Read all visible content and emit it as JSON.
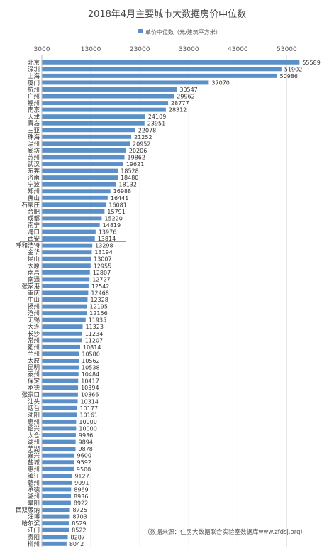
{
  "chart_data": {
    "type": "bar",
    "orientation": "horizontal",
    "title": "2018年4月主要城市大数据房价中位数",
    "legend": "单价中位数（元/建筑平方米）",
    "legend_position": "top",
    "series_color": "#5b8fc7",
    "marker_color": "#d22b2b",
    "xlim": [
      3000,
      58000
    ],
    "xticks": [
      3000,
      13000,
      23000,
      33000,
      43000,
      53000
    ],
    "source": "（数据来源：住房大数据联合实验室数据库www.zfdsj.org）",
    "categories": [
      "北京",
      "深圳",
      "上海",
      "厦门",
      "杭州",
      "广州",
      "福州",
      "南京",
      "天津",
      "青岛",
      "三亚",
      "珠海",
      "温州",
      "廊坊",
      "苏州",
      "武汉",
      "东莞",
      "济南",
      "宁波",
      "郑州",
      "佛山",
      "石家庄",
      "合肥",
      "成都",
      "南宁",
      "海口",
      "西安",
      "呼和浩特",
      "金华",
      "昆山",
      "太原",
      "南昌",
      "南通",
      "张家港",
      "重庆",
      "中山",
      "扬州",
      "沧州",
      "无锡",
      "大连",
      "长沙",
      "常州",
      "衢州",
      "兰州",
      "太原",
      "昆明",
      "泰州",
      "保定",
      "承德",
      "张家口",
      "汕头",
      "烟台",
      "沈阳",
      "惠州",
      "绍兴",
      "太仓",
      "湖州",
      "芜湖",
      "嘉兴",
      "盐城",
      "惠州",
      "镇江",
      "赣州",
      "承德",
      "湖州",
      "阜阳",
      "西双版纳",
      "淄博",
      "哈尔滨",
      "江门",
      "贵阳",
      "柳州"
    ],
    "values": [
      55589,
      51902,
      50986,
      37070,
      30547,
      29962,
      28777,
      28312,
      24109,
      23951,
      22078,
      21252,
      20952,
      20206,
      19862,
      19621,
      18528,
      18480,
      18132,
      16988,
      16441,
      16081,
      15791,
      15220,
      14819,
      13976,
      13814,
      13298,
      13194,
      13007,
      12955,
      12807,
      12727,
      12542,
      12468,
      12328,
      12195,
      12156,
      11935,
      11323,
      11234,
      11207,
      10814,
      10580,
      10562,
      10538,
      10484,
      10417,
      10394,
      10366,
      10314,
      10177,
      10161,
      10000,
      10000,
      9936,
      9894,
      9878,
      9600,
      9592,
      9500,
      9127,
      9091,
      8969,
      8936,
      8922,
      8725,
      8703,
      8529,
      8522,
      8287,
      8042
    ]
  }
}
